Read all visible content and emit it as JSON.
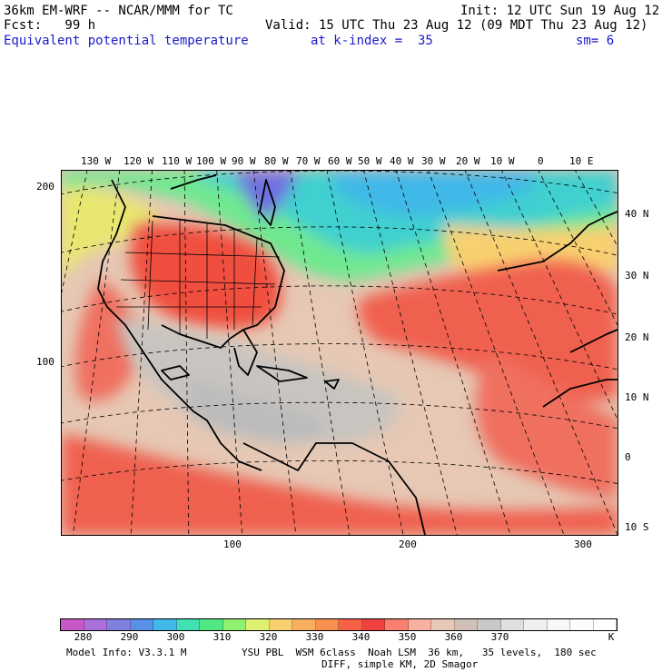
{
  "header": {
    "line1_left": "36km EM-WRF -- NCAR/MMM for TC",
    "line1_right": "Init: 12 UTC Sun 19 Aug 12",
    "line2_left": "Fcst:   99 h",
    "line2_right": "Valid: 15 UTC Thu 23 Aug 12 (09 MDT Thu 23 Aug 12)",
    "line3_field": "Equivalent potential temperature",
    "line3_level": "at k-index =  35",
    "line3_sm": "sm= 6"
  },
  "longitudes": [
    "130 W",
    "120 W",
    "110 W",
    "100 W",
    "90 W",
    "80 W",
    "70 W",
    "60 W",
    "50 W",
    "40 W",
    "30 W",
    "20 W",
    "10 W",
    "0",
    "10 E"
  ],
  "latitudes": [
    "40 N",
    "30 N",
    "20 N",
    "10 N",
    "0",
    "10 S"
  ],
  "grid_y": [
    "200",
    "100"
  ],
  "grid_x": [
    "100",
    "200",
    "300"
  ],
  "colorbar": {
    "labels": [
      "280",
      "290",
      "300",
      "310",
      "320",
      "330",
      "340",
      "350",
      "360",
      "370"
    ],
    "unit": "K",
    "colors": [
      "#c858c8",
      "#a870d8",
      "#8080e0",
      "#5890e8",
      "#40b8e8",
      "#40e0b0",
      "#50e880",
      "#90f070",
      "#e0f070",
      "#f8d070",
      "#f8b060",
      "#f89050",
      "#f86048",
      "#f04040",
      "#f88070",
      "#f8b0a0",
      "#e8c8b8",
      "#d0c0b8",
      "#c8c8c8",
      "#e0e0e0",
      "#f0f0f0",
      "#f8f8f8",
      "#fcfcfc",
      "#ffffff"
    ]
  },
  "footer": {
    "line1_left": "Model Info: V3.3.1 M",
    "line1_right": "YSU PBL  WSM 6class  Noah LSM  36 km,   35 levels,  180 sec",
    "line2": "DIFF, simple KM, 2D Smagor"
  }
}
